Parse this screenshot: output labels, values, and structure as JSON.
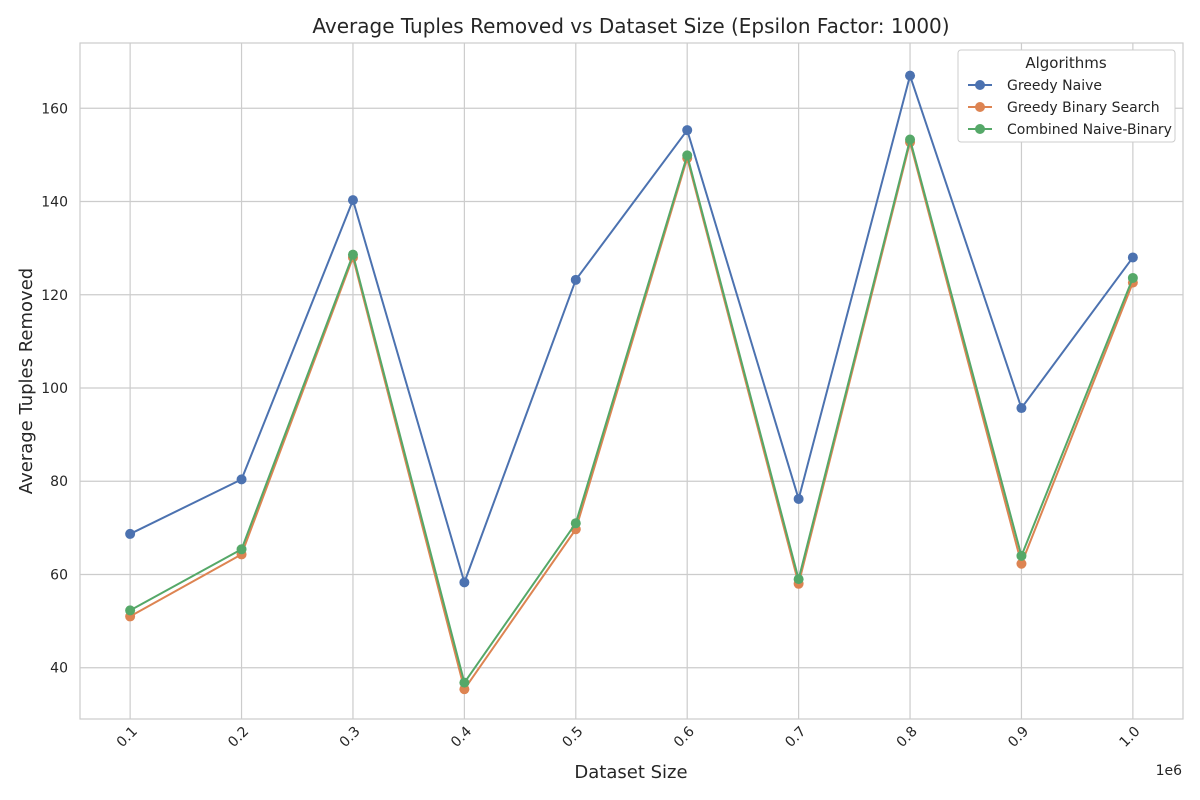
{
  "chart_data": {
    "type": "line",
    "title": "Average Tuples Removed vs Dataset Size (Epsilon Factor: 1000)",
    "xlabel": "Dataset Size",
    "ylabel": "Average Tuples Removed",
    "x_offset_text": "1e6",
    "x": [
      0.1,
      0.2,
      0.3,
      0.4,
      0.5,
      0.6,
      0.7,
      0.8,
      0.9,
      1.0
    ],
    "x_tick_labels": [
      "0.1",
      "0.2",
      "0.3",
      "0.4",
      "0.5",
      "0.6",
      "0.7",
      "0.8",
      "0.9",
      "1.0"
    ],
    "y_ticks": [
      40,
      60,
      80,
      100,
      120,
      140,
      160
    ],
    "y_tick_labels": [
      "40",
      "60",
      "80",
      "100",
      "120",
      "140",
      "160"
    ],
    "xlim": [
      0.055,
      1.045
    ],
    "ylim": [
      29,
      174
    ],
    "grid": true,
    "legend_title": "Algorithms",
    "legend_position": "top-right",
    "series": [
      {
        "name": "Greedy Naive",
        "color": "#4c72b0",
        "values": [
          68.7,
          80.4,
          140.3,
          58.3,
          123.2,
          155.3,
          76.2,
          167.0,
          95.7,
          128.0
        ]
      },
      {
        "name": "Greedy Binary Search",
        "color": "#dd8452",
        "values": [
          51.0,
          64.3,
          128.0,
          35.4,
          69.7,
          149.3,
          58.0,
          152.7,
          62.3,
          122.6
        ]
      },
      {
        "name": "Combined Naive-Binary",
        "color": "#55a868",
        "values": [
          52.3,
          65.4,
          128.6,
          36.8,
          71.0,
          149.9,
          59.0,
          153.3,
          64.0,
          123.6
        ]
      }
    ]
  }
}
